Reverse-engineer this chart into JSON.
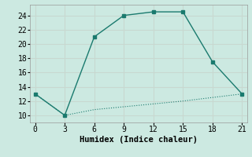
{
  "line1_x": [
    0,
    3,
    6,
    9,
    12,
    15,
    18,
    21
  ],
  "line1_y": [
    13,
    10,
    21,
    24,
    24.5,
    24.5,
    17.5,
    13
  ],
  "line2_x": [
    0,
    3,
    6,
    9,
    12,
    15,
    18,
    21
  ],
  "line2_y": [
    13,
    10,
    10.8,
    11.2,
    11.6,
    12.0,
    12.5,
    13.0
  ],
  "line_color": "#1a7a6e",
  "bg_color": "#cce9e1",
  "grid_color": "#c8d8d0",
  "xlabel": "Humidex (Indice chaleur)",
  "xlim": [
    -0.5,
    21.5
  ],
  "ylim": [
    9.0,
    25.5
  ],
  "xticks": [
    0,
    3,
    6,
    9,
    12,
    15,
    18,
    21
  ],
  "yticks": [
    10,
    12,
    14,
    16,
    18,
    20,
    22,
    24
  ],
  "xlabel_fontsize": 7.5,
  "tick_fontsize": 7
}
